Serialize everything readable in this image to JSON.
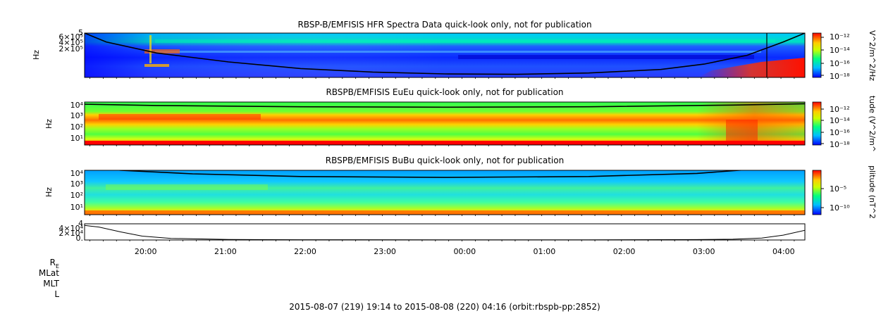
{
  "chart_data": [
    {
      "type": "heatmap",
      "title": "RBSP-B/EMFISIS  HFR Spectra Data quick-look only, not for publication",
      "ylabel": "Hz",
      "yticks": [
        "6×10⁵",
        "4×10⁵",
        "2×10⁵"
      ],
      "ytick_top": "5",
      "colorbar_label": "V^2/m^2/Hz",
      "colorbar_ticks": [
        "10⁻¹²",
        "10⁻¹⁴",
        "10⁻¹⁶",
        "10⁻¹⁸"
      ],
      "colormap": [
        "#0000ff",
        "#00bfff",
        "#00ff80",
        "#ffff00",
        "#ff0000"
      ],
      "overlay_line": {
        "x": [
          0.0,
          0.03,
          0.1,
          0.2,
          0.3,
          0.4,
          0.5,
          0.6,
          0.7,
          0.8,
          0.86,
          0.92,
          0.97,
          1.0
        ],
        "y": [
          1.0,
          0.8,
          0.55,
          0.35,
          0.2,
          0.12,
          0.08,
          0.07,
          0.1,
          0.18,
          0.3,
          0.5,
          0.8,
          1.0
        ]
      }
    },
    {
      "type": "heatmap",
      "title": "RBSPB/EMFISIS  EuEu quick-look only, not for publication",
      "ylabel": "Hz",
      "yticks": [
        "10⁴",
        "10³",
        "10²",
        "10¹"
      ],
      "colorbar_label": "tude (V^2/m^",
      "colorbar_ticks": [
        "10⁻¹²",
        "10⁻¹⁴",
        "10⁻¹⁶",
        "10⁻¹⁸"
      ],
      "overlay_line": {
        "x": [
          0.0,
          0.1,
          0.3,
          0.5,
          0.7,
          0.9,
          1.0
        ],
        "y": [
          0.95,
          0.92,
          0.89,
          0.88,
          0.89,
          0.93,
          0.96
        ]
      }
    },
    {
      "type": "heatmap",
      "title": "RBSPB/EMFISIS  BuBu quick-look only, not for publication",
      "ylabel": "Hz",
      "yticks": [
        "10⁴",
        "10³",
        "10²",
        "10¹"
      ],
      "colorbar_label": "plitude (nT^2",
      "colorbar_ticks": [
        "10⁻⁵",
        "10⁻¹⁰"
      ],
      "overlay_line": {
        "x": [
          0.0,
          0.05,
          0.15,
          0.3,
          0.5,
          0.7,
          0.85,
          0.95,
          1.0
        ],
        "y": [
          1.1,
          1.0,
          0.92,
          0.86,
          0.84,
          0.86,
          0.93,
          1.05,
          1.1
        ]
      }
    },
    {
      "type": "line",
      "yticks": [
        "4×10⁴",
        "2×10⁴",
        "0."
      ],
      "ytick_top": "4",
      "x": [
        0.0,
        0.02,
        0.05,
        0.08,
        0.12,
        0.2,
        0.3,
        0.5,
        0.7,
        0.85,
        0.9,
        0.94,
        0.97,
        1.0
      ],
      "y": [
        45000,
        40000,
        25000,
        12000,
        5000,
        1500,
        800,
        500,
        700,
        1200,
        2500,
        6000,
        15000,
        30000
      ]
    }
  ],
  "time_axis": {
    "ticks": [
      "20:00",
      "21:00",
      "22:00",
      "23:00",
      "00:00",
      "01:00",
      "02:00",
      "03:00",
      "04:00"
    ]
  },
  "ephemeris_labels": [
    {
      "base": "R",
      "sub": "E"
    },
    {
      "base": "MLat",
      "sub": ""
    },
    {
      "base": "MLT",
      "sub": ""
    },
    {
      "base": "L",
      "sub": ""
    }
  ],
  "footer": "2015-08-07 (219) 19:14 to 2015-08-08 (220) 04:16 (orbit:rbspb-pp:2852)"
}
